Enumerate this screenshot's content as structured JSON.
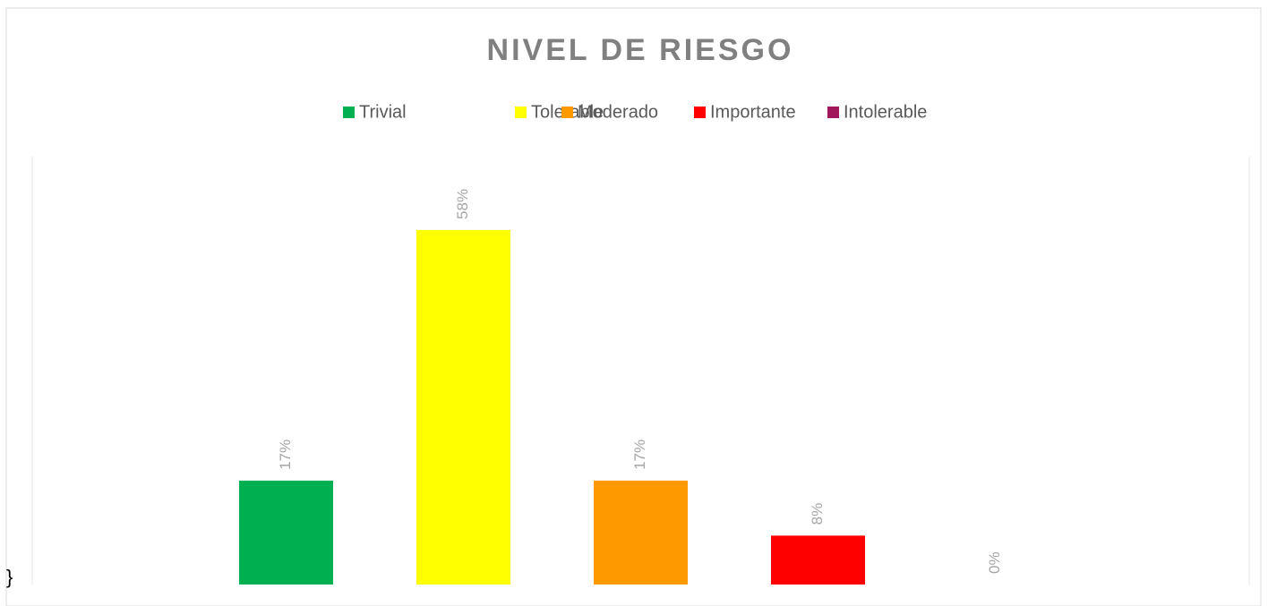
{
  "chart_data": {
    "type": "bar",
    "title": "NIVEL DE RIESGO",
    "categories": [
      null
    ],
    "series": [
      {
        "name": "Trivial",
        "color": "#00b050",
        "values": [
          17
        ],
        "value_labels": [
          "17%"
        ]
      },
      {
        "name": "Tolerable",
        "color": "#ffff00",
        "values": [
          58
        ],
        "value_labels": [
          "58%"
        ]
      },
      {
        "name": "Moderado",
        "color": "#ff9900",
        "values": [
          17
        ],
        "value_labels": [
          "17%"
        ]
      },
      {
        "name": "Importante",
        "color": "#ff0000",
        "values": [
          8
        ],
        "value_labels": [
          "8%"
        ]
      },
      {
        "name": "Intolerable",
        "color": "#a0185a",
        "values": [
          0
        ],
        "value_labels": [
          "0%"
        ]
      }
    ],
    "ylim": [
      0,
      70
    ],
    "legend": "top",
    "stray_text": "}"
  }
}
